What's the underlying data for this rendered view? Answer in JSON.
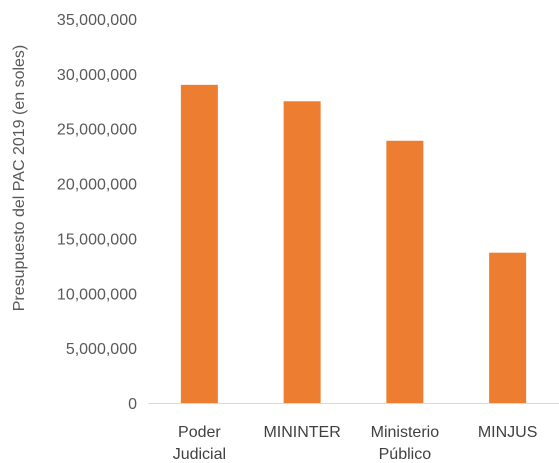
{
  "chart_data": {
    "type": "bar",
    "categories": [
      [
        "Poder",
        "Judicial"
      ],
      [
        "MININTER"
      ],
      [
        "Ministerio",
        "Público"
      ],
      [
        "MINJUS"
      ]
    ],
    "values": [
      29000000,
      27500000,
      23900000,
      13700000
    ],
    "ylabel": "Presupuesto del PAC 2019 (en soles)",
    "ylim": [
      0,
      35000000
    ],
    "y_ticks": [
      "0",
      "5,000,000",
      "10,000,000",
      "15,000,000",
      "20,000,000",
      "25,000,000",
      "30,000,000",
      "35,000,000"
    ],
    "grid": false,
    "legend": "none",
    "bar_color": "#ED7D31",
    "axis_color": "#D9D9D9"
  }
}
